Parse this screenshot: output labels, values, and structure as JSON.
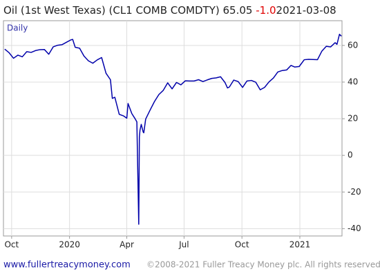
{
  "chart_data": {
    "type": "line",
    "title": "Oil (1st West Texas) (CL1 COMB COMDTY)",
    "last_value": "65.05",
    "change": "-1.0",
    "date": "2021-03-08",
    "frequency_label": "Daily",
    "footer_site": "www.fullertreacymoney.com",
    "footer_copyright": "©2008-2021 Fuller Treacy Money plc. All rights reserved",
    "x": [
      "2019-09-20",
      "2019-09-27",
      "2019-10-04",
      "2019-10-11",
      "2019-10-18",
      "2019-10-25",
      "2019-11-01",
      "2019-11-08",
      "2019-11-15",
      "2019-11-22",
      "2019-11-29",
      "2019-12-06",
      "2019-12-13",
      "2019-12-20",
      "2019-12-27",
      "2020-01-03",
      "2020-01-06",
      "2020-01-10",
      "2020-01-17",
      "2020-01-24",
      "2020-01-31",
      "2020-02-07",
      "2020-02-14",
      "2020-02-21",
      "2020-02-28",
      "2020-03-06",
      "2020-03-09",
      "2020-03-13",
      "2020-03-20",
      "2020-03-27",
      "2020-04-01",
      "2020-04-03",
      "2020-04-09",
      "2020-04-14",
      "2020-04-17",
      "2020-04-20",
      "2020-04-21",
      "2020-04-22",
      "2020-04-24",
      "2020-04-27",
      "2020-04-28",
      "2020-05-01",
      "2020-05-08",
      "2020-05-15",
      "2020-05-22",
      "2020-05-29",
      "2020-06-05",
      "2020-06-12",
      "2020-06-19",
      "2020-06-26",
      "2020-07-03",
      "2020-07-10",
      "2020-07-17",
      "2020-07-24",
      "2020-07-31",
      "2020-08-07",
      "2020-08-14",
      "2020-08-21",
      "2020-08-28",
      "2020-09-04",
      "2020-09-08",
      "2020-09-11",
      "2020-09-18",
      "2020-09-25",
      "2020-10-02",
      "2020-10-09",
      "2020-10-16",
      "2020-10-23",
      "2020-10-30",
      "2020-11-06",
      "2020-11-13",
      "2020-11-20",
      "2020-11-27",
      "2020-12-04",
      "2020-12-11",
      "2020-12-18",
      "2020-12-24",
      "2020-12-31",
      "2021-01-08",
      "2021-01-15",
      "2021-01-22",
      "2021-01-29",
      "2021-02-05",
      "2021-02-12",
      "2021-02-19",
      "2021-02-26",
      "2021-03-01",
      "2021-03-05",
      "2021-03-08"
    ],
    "series": [
      {
        "name": "Oil",
        "color": "#0000aa",
        "values": [
          58,
          56,
          53,
          54.7,
          53.8,
          56.6,
          56.2,
          57.2,
          57.7,
          57.8,
          55.2,
          59.2,
          60.1,
          60.4,
          61.7,
          63.0,
          63.3,
          59.0,
          58.5,
          54.2,
          51.6,
          50.3,
          52.1,
          53.4,
          44.8,
          41.3,
          31.1,
          31.7,
          22.4,
          21.5,
          20.3,
          28.3,
          22.8,
          20.1,
          18.3,
          -37.6,
          10.0,
          13.8,
          16.9,
          12.8,
          12.3,
          19.8,
          24.7,
          29.4,
          33.2,
          35.5,
          39.6,
          36.3,
          39.8,
          38.5,
          40.7,
          40.6,
          40.6,
          41.3,
          40.3,
          41.2,
          42.0,
          42.3,
          42.9,
          39.8,
          36.8,
          37.3,
          41.1,
          40.3,
          37.1,
          40.6,
          40.9,
          39.9,
          35.8,
          37.1,
          40.1,
          42.2,
          45.5,
          46.3,
          46.6,
          49.1,
          48.2,
          48.5,
          52.2,
          52.4,
          52.3,
          52.2,
          56.9,
          59.5,
          59.2,
          61.5,
          60.6,
          66.1,
          65.05
        ]
      }
    ],
    "xlim": [
      "2019-09-18",
      "2021-03-09"
    ],
    "xticks": [
      {
        "value": "2019-10-01",
        "label": "Oct"
      },
      {
        "value": "2020-01-01",
        "label": "2020"
      },
      {
        "value": "2020-04-01",
        "label": "Apr"
      },
      {
        "value": "2020-07-01",
        "label": "Jul"
      },
      {
        "value": "2020-10-01",
        "label": "Oct"
      },
      {
        "value": "2021-01-01",
        "label": "2021"
      }
    ],
    "ylim": [
      -44,
      73.5
    ],
    "yticks": [
      -40,
      -20,
      0,
      20,
      40,
      60
    ],
    "grid": true
  }
}
